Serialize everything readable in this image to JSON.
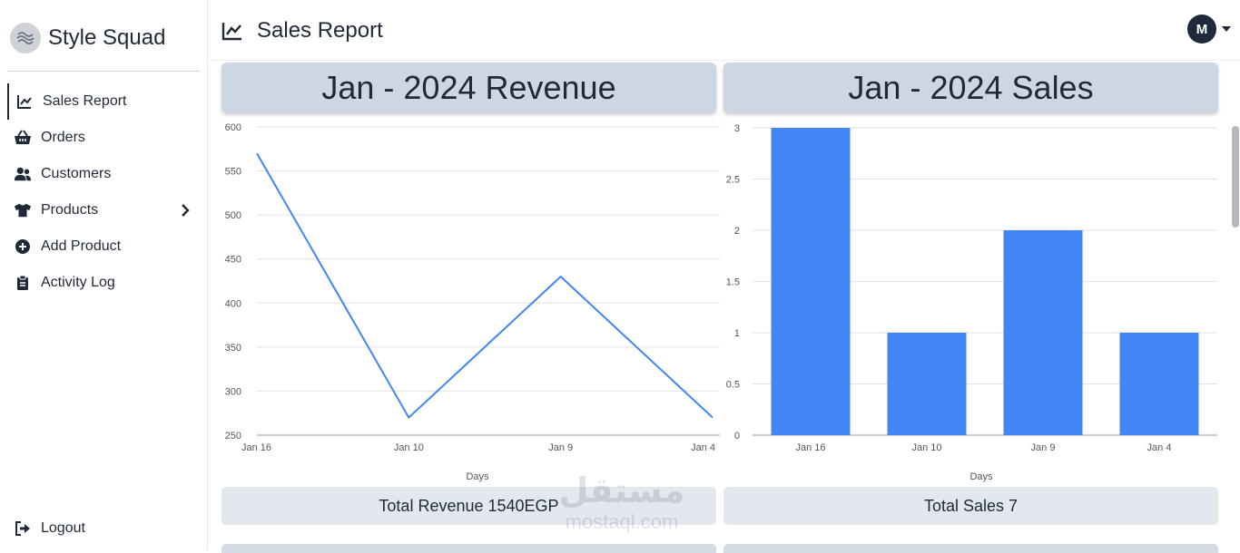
{
  "brand": {
    "name": "Style Squad"
  },
  "sidebar": {
    "items": [
      {
        "label": "Sales Report",
        "icon": "chart-line-icon",
        "active": true
      },
      {
        "label": "Orders",
        "icon": "basket-icon"
      },
      {
        "label": "Customers",
        "icon": "users-icon"
      },
      {
        "label": "Products",
        "icon": "shirt-icon",
        "has_submenu": true
      },
      {
        "label": "Add Product",
        "icon": "plus-circle-icon"
      },
      {
        "label": "Activity Log",
        "icon": "clipboard-icon"
      }
    ],
    "logout_label": "Logout"
  },
  "header": {
    "title": "Sales Report",
    "user_initial": "M"
  },
  "revenue_panel": {
    "title": "Jan - 2024 Revenue",
    "summary": "Total Revenue 1540EGP"
  },
  "sales_panel": {
    "title": "Jan - 2024 Sales",
    "summary": "Total Sales 7"
  },
  "watermark": {
    "arabic": "مستقل",
    "latin": "mostaql.com"
  },
  "colors": {
    "accent": "#4285f4",
    "panel_header": "#cdd6e3",
    "summary_bg": "#e3e8ef",
    "avatar": "#1e2a3b"
  },
  "chart_data": [
    {
      "type": "line",
      "categories": [
        "Jan 16",
        "Jan 10",
        "Jan 9",
        "Jan 4"
      ],
      "series": [
        {
          "values": [
            570,
            270,
            430,
            270
          ]
        }
      ],
      "xlabel": "Days",
      "ylabel": "",
      "ylim": [
        250,
        600
      ],
      "yticks": [
        250,
        300,
        350,
        400,
        450,
        500,
        550,
        600
      ],
      "grid": true,
      "color": "#4285f4"
    },
    {
      "type": "bar",
      "categories": [
        "Jan 16",
        "Jan 10",
        "Jan 9",
        "Jan 4"
      ],
      "values": [
        3,
        1,
        2,
        1
      ],
      "xlabel": "Days",
      "ylabel": "",
      "ylim": [
        0,
        3
      ],
      "yticks": [
        0,
        0.5,
        1,
        1.5,
        2,
        2.5,
        3
      ],
      "grid": true,
      "color": "#4285f4"
    }
  ]
}
